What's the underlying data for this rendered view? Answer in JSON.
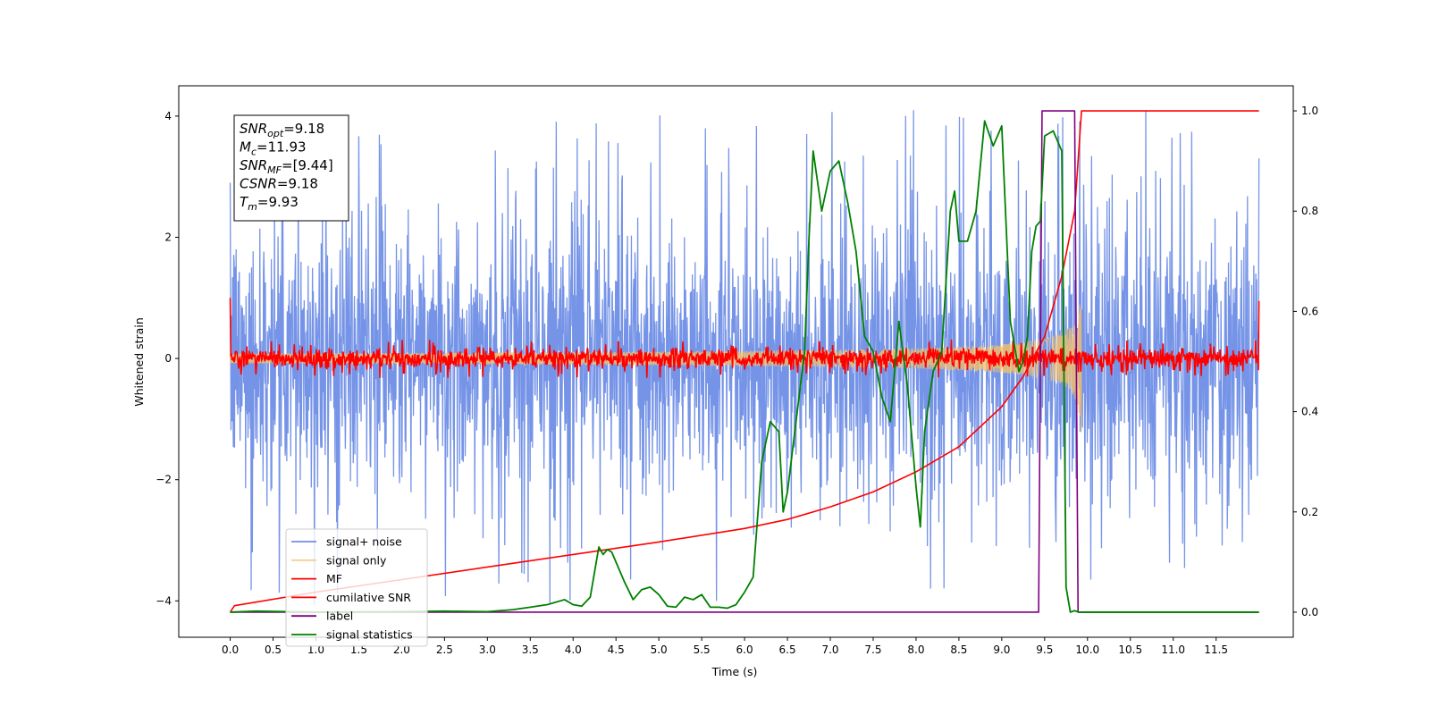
{
  "chart_data": {
    "type": "line",
    "xlabel": "Time (s)",
    "ylabel": "Whitened strain",
    "xlim": [
      -0.6,
      12.4
    ],
    "ylim": [
      -4.6,
      4.5
    ],
    "y2lim": [
      -0.05,
      1.05
    ],
    "xticks": [
      0.0,
      0.5,
      1.0,
      1.5,
      2.0,
      2.5,
      3.0,
      3.5,
      4.0,
      4.5,
      5.0,
      5.5,
      6.0,
      6.5,
      7.0,
      7.5,
      8.0,
      8.5,
      9.0,
      9.5,
      10.0,
      10.5,
      11.0,
      11.5
    ],
    "xtick_labels": [
      "0.0",
      "0.5",
      "1.0",
      "1.5",
      "2.0",
      "2.5",
      "3.0",
      "3.5",
      "4.0",
      "4.5",
      "5.0",
      "5.5",
      "6.0",
      "6.5",
      "7.0",
      "7.5",
      "8.0",
      "8.5",
      "9.0",
      "9.5",
      "10.0",
      "10.5",
      "11.0",
      "11.5"
    ],
    "yticks": [
      -4,
      -2,
      0,
      2,
      4
    ],
    "ytick_labels": [
      "−4",
      "−2",
      "0",
      "2",
      "4"
    ],
    "y2ticks": [
      0.0,
      0.2,
      0.4,
      0.6,
      0.8,
      1.0
    ],
    "y2tick_labels": [
      "0.0",
      "0.2",
      "0.4",
      "0.6",
      "0.8",
      "1.0"
    ],
    "grid": false,
    "legend_placement": "lower-left",
    "annotation": {
      "lines": [
        {
          "var": "SNR",
          "sub": "opt",
          "value": "=9.18"
        },
        {
          "var": "M",
          "sub": "c",
          "value": "=11.93"
        },
        {
          "var": "SNR",
          "sub": "MF",
          "value": "=[9.44]"
        },
        {
          "var": "CSNR",
          "sub": "",
          "value": "=9.18"
        },
        {
          "var": "T",
          "sub": "m",
          "value": "=9.93"
        }
      ]
    },
    "series": [
      {
        "name": "signal+ noise",
        "axis": "left",
        "color": "#6f8ee6",
        "kind": "noise_band",
        "x_range": [
          0.0,
          12.0
        ],
        "envelope_typical": 1.9,
        "envelope_peak": 4.1
      },
      {
        "name": "signal only",
        "axis": "left",
        "color": "#f5c06a",
        "kind": "chirp",
        "x_range": [
          0.0,
          9.93
        ],
        "peak_amplitude": 1.35,
        "peak_time": 9.93
      },
      {
        "name": "MF",
        "axis": "left",
        "color": "#ff0000",
        "kind": "noise_band",
        "x_range": [
          0.0,
          12.0
        ],
        "envelope_typical": 0.12,
        "envelope_peak": 0.32,
        "edge_values": [
          1.0,
          0.95
        ]
      },
      {
        "name": "cumilative SNR",
        "axis": "right",
        "color": "#ff0000",
        "x": [
          0.0,
          0.05,
          1.0,
          2.0,
          3.0,
          4.0,
          5.0,
          6.0,
          6.5,
          7.0,
          7.5,
          8.0,
          8.5,
          9.0,
          9.25,
          9.5,
          9.7,
          9.85,
          9.93,
          10.0,
          11.0,
          12.0
        ],
        "values": [
          0.0,
          0.013,
          0.04,
          0.065,
          0.09,
          0.115,
          0.14,
          0.167,
          0.185,
          0.21,
          0.24,
          0.28,
          0.33,
          0.41,
          0.47,
          0.55,
          0.67,
          0.8,
          1.0,
          1.0,
          1.0,
          1.0
        ]
      },
      {
        "name": "label",
        "axis": "right",
        "color": "#800080",
        "x": [
          0.0,
          9.43,
          9.47,
          9.85,
          9.89,
          12.0
        ],
        "values": [
          0.0,
          0.0,
          1.0,
          1.0,
          0.0,
          0.0
        ]
      },
      {
        "name": "signal statistics",
        "axis": "right",
        "color": "#008000",
        "x": [
          0.0,
          0.3,
          1.0,
          2.0,
          2.5,
          3.0,
          3.3,
          3.5,
          3.7,
          3.9,
          4.0,
          4.1,
          4.2,
          4.3,
          4.35,
          4.4,
          4.45,
          4.5,
          4.6,
          4.7,
          4.8,
          4.9,
          5.0,
          5.1,
          5.2,
          5.3,
          5.4,
          5.5,
          5.6,
          5.7,
          5.8,
          5.9,
          6.0,
          6.1,
          6.2,
          6.3,
          6.4,
          6.45,
          6.5,
          6.6,
          6.7,
          6.75,
          6.8,
          6.9,
          7.0,
          7.1,
          7.2,
          7.3,
          7.4,
          7.5,
          7.6,
          7.7,
          7.8,
          7.9,
          8.0,
          8.05,
          8.1,
          8.2,
          8.3,
          8.4,
          8.45,
          8.5,
          8.6,
          8.7,
          8.8,
          8.9,
          9.0,
          9.1,
          9.2,
          9.25,
          9.3,
          9.35,
          9.4,
          9.45,
          9.5,
          9.6,
          9.7,
          9.75,
          9.8,
          9.85,
          9.9,
          9.95,
          10.0,
          10.1,
          10.2,
          10.5,
          11.0,
          12.0
        ],
        "values": [
          0.0,
          0.002,
          0.0,
          0.001,
          0.002,
          0.001,
          0.005,
          0.01,
          0.015,
          0.025,
          0.015,
          0.012,
          0.03,
          0.13,
          0.115,
          0.125,
          0.12,
          0.1,
          0.06,
          0.025,
          0.045,
          0.05,
          0.035,
          0.012,
          0.01,
          0.03,
          0.025,
          0.035,
          0.01,
          0.01,
          0.008,
          0.015,
          0.04,
          0.07,
          0.3,
          0.38,
          0.36,
          0.2,
          0.24,
          0.38,
          0.52,
          0.74,
          0.92,
          0.8,
          0.88,
          0.9,
          0.82,
          0.72,
          0.55,
          0.52,
          0.43,
          0.38,
          0.58,
          0.45,
          0.25,
          0.17,
          0.36,
          0.48,
          0.52,
          0.8,
          0.84,
          0.74,
          0.74,
          0.8,
          0.98,
          0.93,
          0.97,
          0.58,
          0.48,
          0.5,
          0.55,
          0.72,
          0.77,
          0.78,
          0.95,
          0.96,
          0.92,
          0.05,
          0.0,
          0.003,
          0.0,
          0.0,
          0.0,
          0.0,
          0.0,
          0.0,
          0.0,
          0.0
        ]
      }
    ]
  }
}
